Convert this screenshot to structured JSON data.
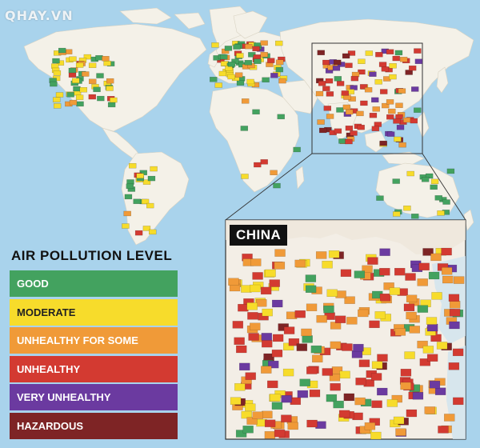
{
  "watermark": "QHAY.VN",
  "legend": {
    "title": "AIR POLLUTION LEVEL",
    "items": [
      {
        "label": "GOOD",
        "color": "#43a25f"
      },
      {
        "label": "MODERATE",
        "color": "#f7dc2b"
      },
      {
        "label": "UNHEALTHY FOR SOME",
        "color": "#f09a38"
      },
      {
        "label": "UNHEALTHY",
        "color": "#d33a31"
      },
      {
        "label": "VERY UNHEALTHY",
        "color": "#6b3aa0"
      },
      {
        "label": "HAZARDOUS",
        "color": "#7e2425"
      }
    ]
  },
  "inset": {
    "title": "CHINA"
  },
  "colors": {
    "ocean": "#a9d3ec",
    "land": "#f4f1e8",
    "inset_land": "#f3eee6",
    "frame": "#333333"
  }
}
